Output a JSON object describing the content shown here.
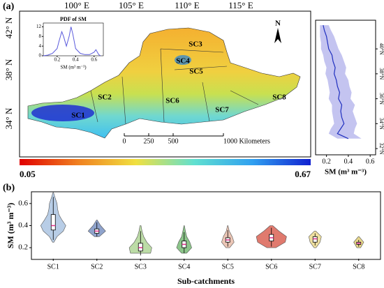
{
  "panel_a": {
    "label": "(a)",
    "lon_labels": [
      "100° E",
      "105° E",
      "110° E",
      "115° E"
    ],
    "lat_labels": [
      "42° N",
      "38° N",
      "34° N"
    ],
    "regions": [
      "SC1",
      "SC2",
      "SC3",
      "SC4",
      "SC5",
      "SC6",
      "SC7",
      "SC8"
    ],
    "north": "N",
    "scale_labels": [
      "0",
      "250",
      "500",
      "1000 Kilometers"
    ],
    "colorbar": {
      "min": 0.05,
      "max": 0.67
    }
  },
  "panel_b": {
    "label": "(b)"
  },
  "chart_data": [
    {
      "type": "line",
      "title": "PDF of SM",
      "x_label": "SM (m³ m⁻³)",
      "x": [
        0.05,
        0.1,
        0.15,
        0.2,
        0.22,
        0.25,
        0.27,
        0.3,
        0.33,
        0.35,
        0.37,
        0.4,
        0.45,
        0.5,
        0.55,
        0.6,
        0.62,
        0.65,
        0.67
      ],
      "values": [
        0,
        0.3,
        1,
        3,
        6,
        10,
        8,
        4,
        8,
        12,
        9,
        3,
        1,
        0.5,
        0.5,
        1.5,
        2.5,
        0.5,
        0
      ],
      "color": "#5a5adc",
      "xlim": [
        0.05,
        0.7
      ],
      "xticks": [
        0.2,
        0.4,
        0.6
      ],
      "ylim": [
        0,
        13
      ],
      "yticks": [
        0,
        4,
        8,
        12
      ]
    },
    {
      "type": "profile",
      "x_label": "SM (m³ m⁻³)",
      "y": [
        32.8,
        33.2,
        33.6,
        34,
        34.5,
        35,
        35.5,
        36,
        36.5,
        37,
        37.5,
        38,
        38.5,
        39,
        39.5,
        40,
        40.5,
        41,
        41.5,
        41.9
      ],
      "values": [
        0.4,
        0.3,
        0.33,
        0.36,
        0.34,
        0.33,
        0.34,
        0.31,
        0.32,
        0.3,
        0.29,
        0.27,
        0.28,
        0.26,
        0.25,
        0.22,
        0.21,
        0.2,
        0.18,
        0.17
      ],
      "lower": [
        0.3,
        0.22,
        0.24,
        0.27,
        0.26,
        0.25,
        0.25,
        0.22,
        0.23,
        0.22,
        0.21,
        0.19,
        0.2,
        0.18,
        0.17,
        0.15,
        0.15,
        0.14,
        0.14,
        0.14
      ],
      "upper": [
        0.52,
        0.45,
        0.46,
        0.48,
        0.46,
        0.44,
        0.46,
        0.42,
        0.43,
        0.41,
        0.4,
        0.37,
        0.38,
        0.36,
        0.34,
        0.31,
        0.29,
        0.27,
        0.24,
        0.22
      ],
      "color": "#1f2fbf",
      "band_color": "#c4c4f0",
      "xlim": [
        0.1,
        0.65
      ],
      "xticks": [
        0.2,
        0.4,
        0.6
      ],
      "ylim": [
        31.5,
        42.3
      ],
      "yticks": [
        {
          "value": 32,
          "label": "32°N"
        },
        {
          "value": 34,
          "label": "34°N"
        },
        {
          "value": 36,
          "label": "36°N"
        },
        {
          "value": 38,
          "label": "38°N"
        },
        {
          "value": 40,
          "label": "40°N"
        }
      ]
    },
    {
      "type": "violin",
      "x_label": "Sub-catchments",
      "y_label": "SM (m³ m⁻³)",
      "categories": [
        "SC1",
        "SC2",
        "SC3",
        "SC4",
        "SC5",
        "SC6",
        "SC7",
        "SC8"
      ],
      "grid_levels": [
        0.1,
        0.15,
        0.2,
        0.25,
        0.3,
        0.35,
        0.4,
        0.45,
        0.5,
        0.55,
        0.6,
        0.65,
        0.7
      ],
      "ylim": [
        0.1,
        0.7
      ],
      "yticks": [
        0.2,
        0.4,
        0.6
      ],
      "series": [
        {
          "color": "#b8cde6",
          "density": [
            null,
            null,
            null,
            0.05,
            0.3,
            0.8,
            1,
            0.7,
            0.45,
            0.35,
            0.3,
            0.15,
            0.02
          ],
          "whisker_low": 0.27,
          "q1": 0.36,
          "median": 0.4,
          "q3": 0.5,
          "whisker_high": 0.66
        },
        {
          "color": "#8fa3cc",
          "density": [
            null,
            null,
            null,
            null,
            0.2,
            0.7,
            0.3,
            0.03,
            null,
            null,
            null,
            null,
            null
          ],
          "whisker_low": 0.3,
          "q1": 0.33,
          "median": 0.35,
          "q3": 0.37,
          "whisker_high": 0.43
        },
        {
          "color": "#bcdca6",
          "density": [
            null,
            0.8,
            0.9,
            0.5,
            0.25,
            0.12,
            0.04,
            null,
            null,
            null,
            null,
            null,
            null
          ],
          "whisker_low": 0.13,
          "q1": 0.17,
          "median": 0.2,
          "q3": 0.24,
          "whisker_high": 0.35
        },
        {
          "color": "#8cc58a",
          "density": [
            null,
            0.2,
            0.6,
            0.45,
            0.2,
            0.1,
            0.02,
            null,
            null,
            null,
            null,
            null,
            null
          ],
          "whisker_low": 0.15,
          "q1": 0.2,
          "median": 0.23,
          "q3": 0.26,
          "whisker_high": 0.34
        },
        {
          "color": "#ebc6b6",
          "density": [
            null,
            null,
            0.15,
            0.5,
            0.35,
            0.12,
            0.02,
            null,
            null,
            null,
            null,
            null,
            null
          ],
          "whisker_low": 0.21,
          "q1": 0.25,
          "median": 0.27,
          "q3": 0.29,
          "whisker_high": 0.36
        },
        {
          "color": "#e07a6e",
          "density": [
            null,
            null,
            0.35,
            1.1,
            1.2,
            0.6,
            0.1,
            null,
            null,
            null,
            null,
            null,
            null
          ],
          "whisker_low": 0.21,
          "q1": 0.26,
          "median": 0.29,
          "q3": 0.32,
          "whisker_high": 0.38
        },
        {
          "color": "#efe0a0",
          "density": [
            null,
            null,
            0.08,
            0.4,
            0.5,
            0.06,
            null,
            null,
            null,
            null,
            null,
            null,
            null
          ],
          "whisker_low": 0.22,
          "q1": 0.25,
          "median": 0.28,
          "q3": 0.3,
          "whisker_high": 0.33
        },
        {
          "color": "#e6d68a",
          "density": [
            null,
            null,
            0.15,
            0.4,
            0.03,
            null,
            null,
            null,
            null,
            null,
            null,
            null,
            null
          ],
          "whisker_low": 0.21,
          "q1": 0.23,
          "median": 0.24,
          "q3": 0.25,
          "whisker_high": 0.27
        }
      ]
    }
  ]
}
